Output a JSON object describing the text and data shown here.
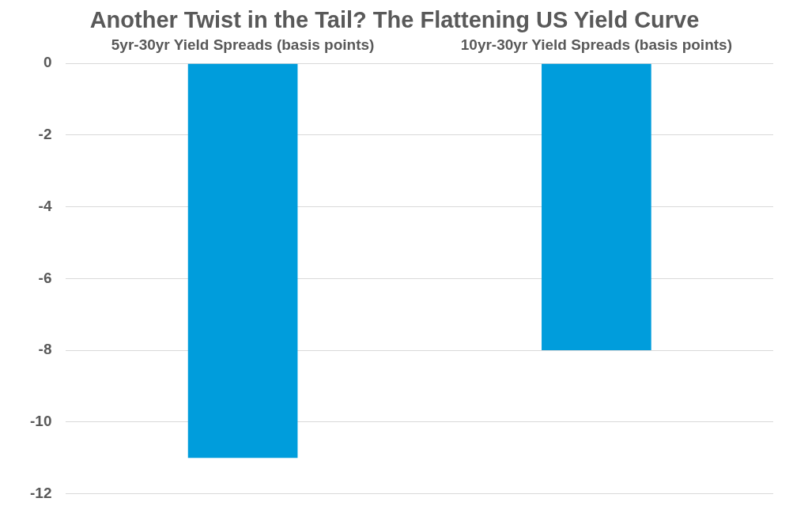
{
  "chart_data": {
    "type": "bar",
    "title": "Another Twist in the Tail? The Flattening US Yield Curve",
    "categories": [
      "5yr-30yr Yield Spreads (basis points)",
      "10yr-30yr Yield Spreads (basis points)"
    ],
    "values": [
      -11,
      -8
    ],
    "color": "#009ddc",
    "ylim": [
      -12,
      0
    ],
    "yticks": [
      0,
      -2,
      -4,
      -6,
      -8,
      -10,
      -12
    ],
    "grid": "y",
    "legend": false
  }
}
